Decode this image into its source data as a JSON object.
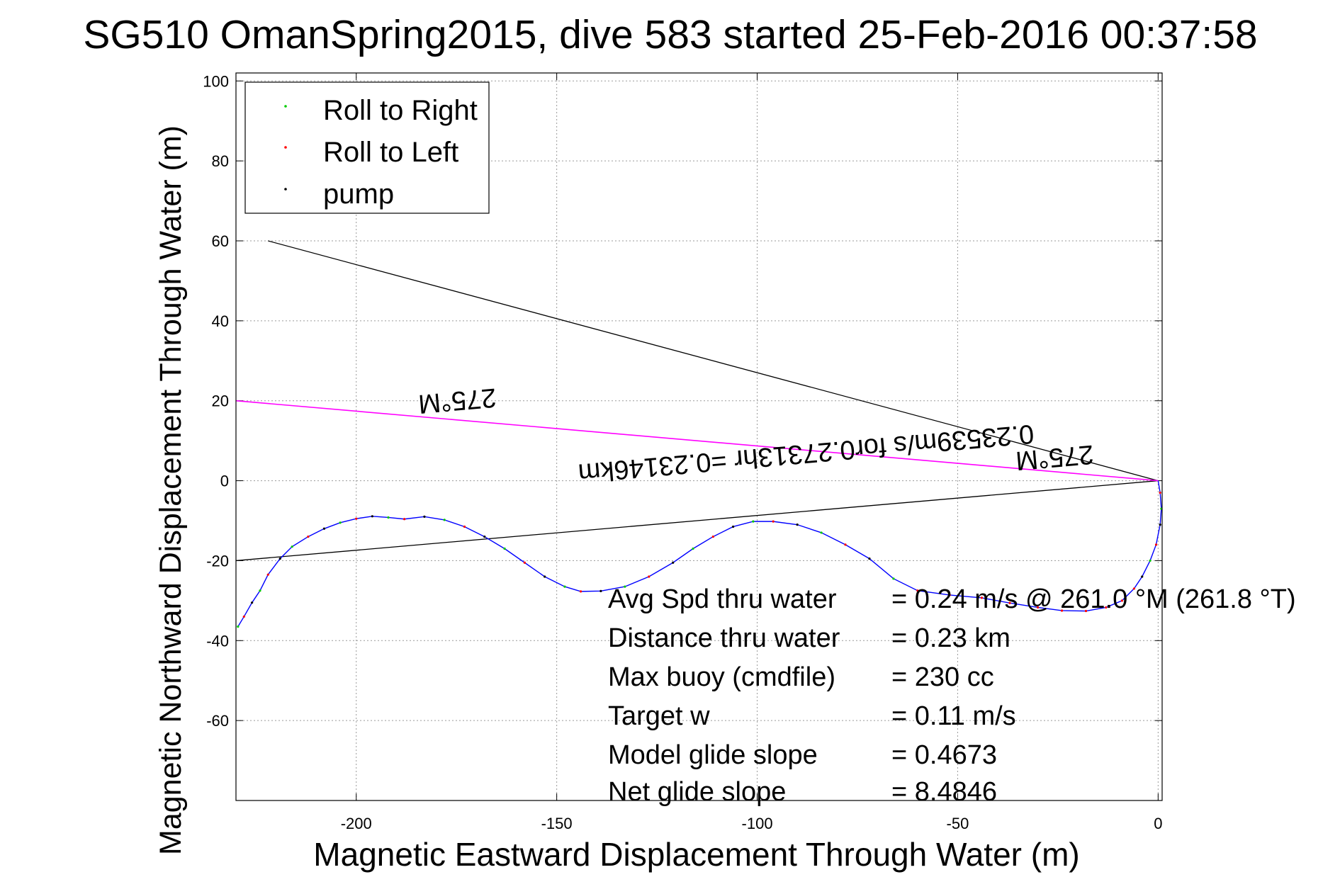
{
  "colors": {
    "track": "#0000ff",
    "heading": "#ff00ff",
    "bounds": "#000000",
    "roll_right": "#00cc00",
    "roll_left": "#ff0000",
    "pump": "#000000"
  },
  "chart_data": {
    "type": "line",
    "title": "SG510 OmanSpring2015, dive 583 started 25-Feb-2016 00:37:58",
    "xlabel": "Magnetic Eastward Displacement Through Water (m)",
    "ylabel": "Magnetic Northward Displacement Through Water (m)",
    "xlim": [
      -230,
      1
    ],
    "ylim": [
      -80,
      102
    ],
    "xticks": [
      -200,
      -150,
      -100,
      -50,
      0
    ],
    "yticks": [
      -60,
      -40,
      -20,
      0,
      20,
      40,
      60,
      80,
      100
    ],
    "grid": true,
    "legend_position": "top-left",
    "legend": [
      {
        "label": "Roll to Right",
        "color": "#00cc00"
      },
      {
        "label": "Roll to Left",
        "color": "#ff0000"
      },
      {
        "label": "pump",
        "color": "#000000"
      }
    ],
    "series": [
      {
        "style": "blue-track",
        "x": [
          0,
          0.5,
          0.8,
          0.5,
          -0.5,
          -2,
          -4,
          -6,
          -9,
          -13,
          -18,
          -24,
          -30,
          -37,
          -44,
          -52,
          -60,
          -66,
          -72,
          -78,
          -84,
          -90,
          -96,
          -101,
          -106,
          -111,
          -116,
          -121,
          -127,
          -133,
          -139,
          -144,
          -148,
          -153,
          -158,
          -163,
          -168,
          -173,
          -178,
          -183,
          -188,
          -192,
          -196,
          -200,
          -204,
          -208,
          -212,
          -216,
          -219,
          -222,
          -224,
          -226,
          -228,
          -229.5
        ],
        "y": [
          0,
          -3,
          -7,
          -11,
          -16,
          -20,
          -24,
          -27,
          -30,
          -31.7,
          -32.6,
          -32.5,
          -31.7,
          -30.6,
          -29.3,
          -28.6,
          -27.5,
          -24.5,
          -19.5,
          -16,
          -13,
          -11,
          -10.2,
          -10.2,
          -11.5,
          -14,
          -17,
          -20.5,
          -24,
          -26.5,
          -27.6,
          -27.7,
          -26.5,
          -24,
          -20.5,
          -17,
          -14,
          -11.5,
          -9.8,
          -9,
          -9.6,
          -9.2,
          -8.9,
          -9.5,
          -10.5,
          -12,
          -14,
          -16.5,
          -19.5,
          -23.5,
          -27.5,
          -30.5,
          -34,
          -36.5
        ]
      },
      {
        "style": "heading-line",
        "x": [
          0,
          -230
        ],
        "y": [
          0,
          20
        ]
      },
      {
        "style": "bound-line-upper",
        "x": [
          0,
          -222
        ],
        "y": [
          0,
          60
        ]
      },
      {
        "style": "bound-line-lower",
        "x": [
          0,
          -230
        ],
        "y": [
          0,
          -20
        ]
      }
    ],
    "annotations": [
      {
        "text": "275°M",
        "x": -175,
        "y": 22.2,
        "rotate": 175
      },
      {
        "text": "275°M",
        "x": -26,
        "y": 8,
        "rotate": 175
      },
      {
        "text": "0.23539m/s for0.27313hr =0.23146km",
        "x": -88,
        "y": 9,
        "rotate": 175
      }
    ],
    "stats": [
      {
        "label": "Avg Spd thru water",
        "value": "=  0.24 m/s @ 261.0 °M (261.8 °T)"
      },
      {
        "label": "Distance thru water",
        "value": "=  0.23 km"
      },
      {
        "label": "Max buoy (cmdfile)",
        "value": "= 230 cc"
      },
      {
        "label": "Target w",
        "value": "= 0.11 m/s"
      },
      {
        "label": "Model glide slope",
        "value": "= 0.4673"
      },
      {
        "label": "Net glide slope",
        "value": "= 8.4846"
      }
    ]
  }
}
